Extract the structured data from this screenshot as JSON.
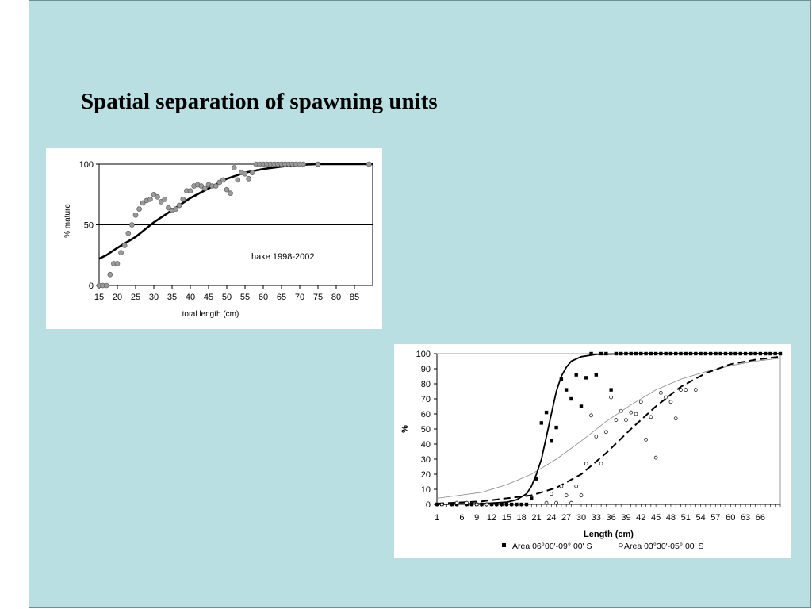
{
  "slide": {
    "title": "Spatial separation of spawning units"
  },
  "chart_data": [
    {
      "type": "scatter",
      "title": "",
      "annotation": "hake 1998-2002",
      "xlabel": "total length (cm)",
      "ylabel": "% mature",
      "xlim": [
        15,
        90
      ],
      "ylim": [
        0,
        100
      ],
      "x_ticks": [
        "15",
        "20",
        "25",
        "30",
        "35",
        "40",
        "45",
        "50",
        "55",
        "60",
        "65",
        "70",
        "75",
        "80",
        "85"
      ],
      "y_ticks": [
        "0",
        "50",
        "100"
      ],
      "reference_line_y": 50,
      "grid": false,
      "series": [
        {
          "type": "scatter",
          "marker": "grey-circle",
          "color": "#9a9a9a",
          "points": [
            [
              15,
              0
            ],
            [
              16,
              0
            ],
            [
              17,
              0
            ],
            [
              18,
              9
            ],
            [
              19,
              18
            ],
            [
              20,
              18
            ],
            [
              21,
              27
            ],
            [
              22,
              33
            ],
            [
              23,
              43
            ],
            [
              24,
              50
            ],
            [
              25,
              58
            ],
            [
              26,
              63
            ],
            [
              27,
              68
            ],
            [
              28,
              70
            ],
            [
              29,
              71
            ],
            [
              30,
              75
            ],
            [
              31,
              73
            ],
            [
              32,
              69
            ],
            [
              33,
              71
            ],
            [
              34,
              64
            ],
            [
              35,
              62
            ],
            [
              36,
              63
            ],
            [
              37,
              66
            ],
            [
              38,
              71
            ],
            [
              39,
              78
            ],
            [
              40,
              78
            ],
            [
              41,
              82
            ],
            [
              42,
              83
            ],
            [
              43,
              82
            ],
            [
              44,
              80
            ],
            [
              45,
              83
            ],
            [
              46,
              82
            ],
            [
              47,
              82
            ],
            [
              48,
              85
            ],
            [
              49,
              87
            ],
            [
              50,
              79
            ],
            [
              51,
              76
            ],
            [
              52,
              97
            ],
            [
              53,
              87
            ],
            [
              54,
              93
            ],
            [
              55,
              92
            ],
            [
              56,
              88
            ],
            [
              57,
              93
            ],
            [
              58,
              100
            ],
            [
              59,
              100
            ],
            [
              60,
              100
            ],
            [
              61,
              100
            ],
            [
              62,
              100
            ],
            [
              63,
              100
            ],
            [
              64,
              100
            ],
            [
              65,
              100
            ],
            [
              66,
              100
            ],
            [
              67,
              100
            ],
            [
              68,
              100
            ],
            [
              69,
              100
            ],
            [
              70,
              100
            ],
            [
              71,
              100
            ],
            [
              75,
              100
            ],
            [
              89,
              100
            ]
          ]
        },
        {
          "type": "line",
          "color": "#000000",
          "points": [
            [
              15,
              22
            ],
            [
              17,
              25
            ],
            [
              20,
              31
            ],
            [
              25,
              40
            ],
            [
              30,
              52
            ],
            [
              35,
              62
            ],
            [
              40,
              72
            ],
            [
              45,
              80
            ],
            [
              50,
              88
            ],
            [
              55,
              93
            ],
            [
              60,
              96
            ],
            [
              65,
              98
            ],
            [
              70,
              99.5
            ],
            [
              75,
              100
            ],
            [
              80,
              100
            ],
            [
              85,
              100
            ],
            [
              90,
              100
            ]
          ]
        }
      ]
    },
    {
      "type": "scatter",
      "title": "",
      "xlabel": "Length (cm)",
      "ylabel": "%",
      "xlim": [
        1,
        70
      ],
      "ylim": [
        0,
        100
      ],
      "x_ticks": [
        "1",
        "6",
        "9",
        "12",
        "15",
        "18",
        "21",
        "24",
        "27",
        "30",
        "33",
        "36",
        "39",
        "42",
        "45",
        "48",
        "51",
        "54",
        "57",
        "60",
        "63",
        "66"
      ],
      "y_ticks": [
        "0",
        "10",
        "20",
        "30",
        "40",
        "50",
        "60",
        "70",
        "80",
        "90",
        "100"
      ],
      "grid": false,
      "legend_position": "bottom",
      "series": [
        {
          "name": "Area 06°00'-09° 00' S",
          "type": "scatter",
          "marker": "filled-square",
          "color": "#000000",
          "points": [
            [
              1,
              0
            ],
            [
              2,
              0
            ],
            [
              4,
              0
            ],
            [
              5,
              0
            ],
            [
              7,
              0
            ],
            [
              8,
              0
            ],
            [
              9,
              0
            ],
            [
              10,
              0
            ],
            [
              11,
              0
            ],
            [
              12,
              0
            ],
            [
              13,
              0
            ],
            [
              14,
              0
            ],
            [
              15,
              0
            ],
            [
              16,
              0
            ],
            [
              17,
              0
            ],
            [
              18,
              0
            ],
            [
              19,
              0
            ],
            [
              20,
              4
            ],
            [
              21,
              17
            ],
            [
              22,
              54
            ],
            [
              23,
              61
            ],
            [
              24,
              42
            ],
            [
              25,
              51
            ],
            [
              26,
              83
            ],
            [
              27,
              76
            ],
            [
              28,
              70
            ],
            [
              29,
              86
            ],
            [
              30,
              65
            ],
            [
              31,
              84
            ],
            [
              32,
              100
            ],
            [
              33,
              86
            ],
            [
              34,
              100
            ],
            [
              35,
              100
            ],
            [
              36,
              76
            ],
            [
              37,
              100
            ],
            [
              38,
              100
            ],
            [
              39,
              100
            ],
            [
              40,
              100
            ],
            [
              41,
              100
            ],
            [
              42,
              100
            ],
            [
              43,
              100
            ],
            [
              44,
              100
            ],
            [
              45,
              100
            ],
            [
              46,
              100
            ],
            [
              47,
              100
            ],
            [
              48,
              100
            ],
            [
              49,
              100
            ],
            [
              50,
              100
            ],
            [
              51,
              100
            ],
            [
              52,
              100
            ],
            [
              53,
              100
            ],
            [
              54,
              100
            ],
            [
              55,
              100
            ],
            [
              56,
              100
            ],
            [
              57,
              100
            ],
            [
              58,
              100
            ],
            [
              59,
              100
            ],
            [
              60,
              100
            ],
            [
              61,
              100
            ],
            [
              62,
              100
            ],
            [
              63,
              100
            ],
            [
              64,
              100
            ],
            [
              65,
              100
            ],
            [
              66,
              100
            ],
            [
              67,
              100
            ],
            [
              68,
              100
            ],
            [
              69,
              100
            ],
            [
              70,
              100
            ]
          ]
        },
        {
          "name": "Area 03°30'-05° 00' S",
          "type": "scatter",
          "marker": "open-circle",
          "color": "#000000",
          "points": [
            [
              2,
              0
            ],
            [
              5,
              1
            ],
            [
              7,
              1
            ],
            [
              9,
              0
            ],
            [
              11,
              0
            ],
            [
              23,
              1
            ],
            [
              24,
              7
            ],
            [
              25,
              1
            ],
            [
              26,
              12
            ],
            [
              27,
              6
            ],
            [
              28,
              1
            ],
            [
              29,
              12
            ],
            [
              30,
              6
            ],
            [
              31,
              27
            ],
            [
              32,
              59
            ],
            [
              33,
              45
            ],
            [
              34,
              27
            ],
            [
              35,
              48
            ],
            [
              36,
              71
            ],
            [
              37,
              56
            ],
            [
              38,
              62
            ],
            [
              39,
              56
            ],
            [
              40,
              61
            ],
            [
              41,
              60
            ],
            [
              42,
              68
            ],
            [
              43,
              43
            ],
            [
              44,
              58
            ],
            [
              45,
              31
            ],
            [
              46,
              74
            ],
            [
              47,
              71
            ],
            [
              48,
              68
            ],
            [
              49,
              57
            ],
            [
              50,
              76
            ],
            [
              51,
              76
            ],
            [
              53,
              76
            ]
          ]
        },
        {
          "type": "line",
          "style": "solid",
          "color": "#000000",
          "points": [
            [
              1,
              0
            ],
            [
              10,
              0.5
            ],
            [
              15,
              1.5
            ],
            [
              17,
              3
            ],
            [
              19,
              7
            ],
            [
              20,
              12
            ],
            [
              21,
              20
            ],
            [
              22,
              30
            ],
            [
              23,
              45
            ],
            [
              24,
              60
            ],
            [
              25,
              75
            ],
            [
              26,
              85
            ],
            [
              27,
              91
            ],
            [
              28,
              95
            ],
            [
              30,
              98
            ],
            [
              33,
              99.5
            ],
            [
              40,
              100
            ],
            [
              70,
              100
            ]
          ]
        },
        {
          "type": "line",
          "style": "dashed",
          "color": "#000000",
          "points": [
            [
              1,
              0.5
            ],
            [
              10,
              2
            ],
            [
              15,
              4
            ],
            [
              20,
              6
            ],
            [
              25,
              11
            ],
            [
              30,
              20
            ],
            [
              35,
              34
            ],
            [
              40,
              50
            ],
            [
              45,
              65
            ],
            [
              50,
              78
            ],
            [
              55,
              87
            ],
            [
              60,
              93
            ],
            [
              65,
              96
            ],
            [
              70,
              98
            ]
          ]
        },
        {
          "type": "line",
          "style": "thin",
          "color": "#8a8a8a",
          "points": [
            [
              1,
              4
            ],
            [
              10,
              8
            ],
            [
              15,
              13
            ],
            [
              20,
              20
            ],
            [
              25,
              30
            ],
            [
              30,
              42
            ],
            [
              35,
              55
            ],
            [
              40,
              66
            ],
            [
              45,
              76
            ],
            [
              50,
              83
            ],
            [
              55,
              88
            ],
            [
              60,
              92
            ],
            [
              65,
              95
            ],
            [
              70,
              97
            ]
          ]
        }
      ]
    }
  ]
}
